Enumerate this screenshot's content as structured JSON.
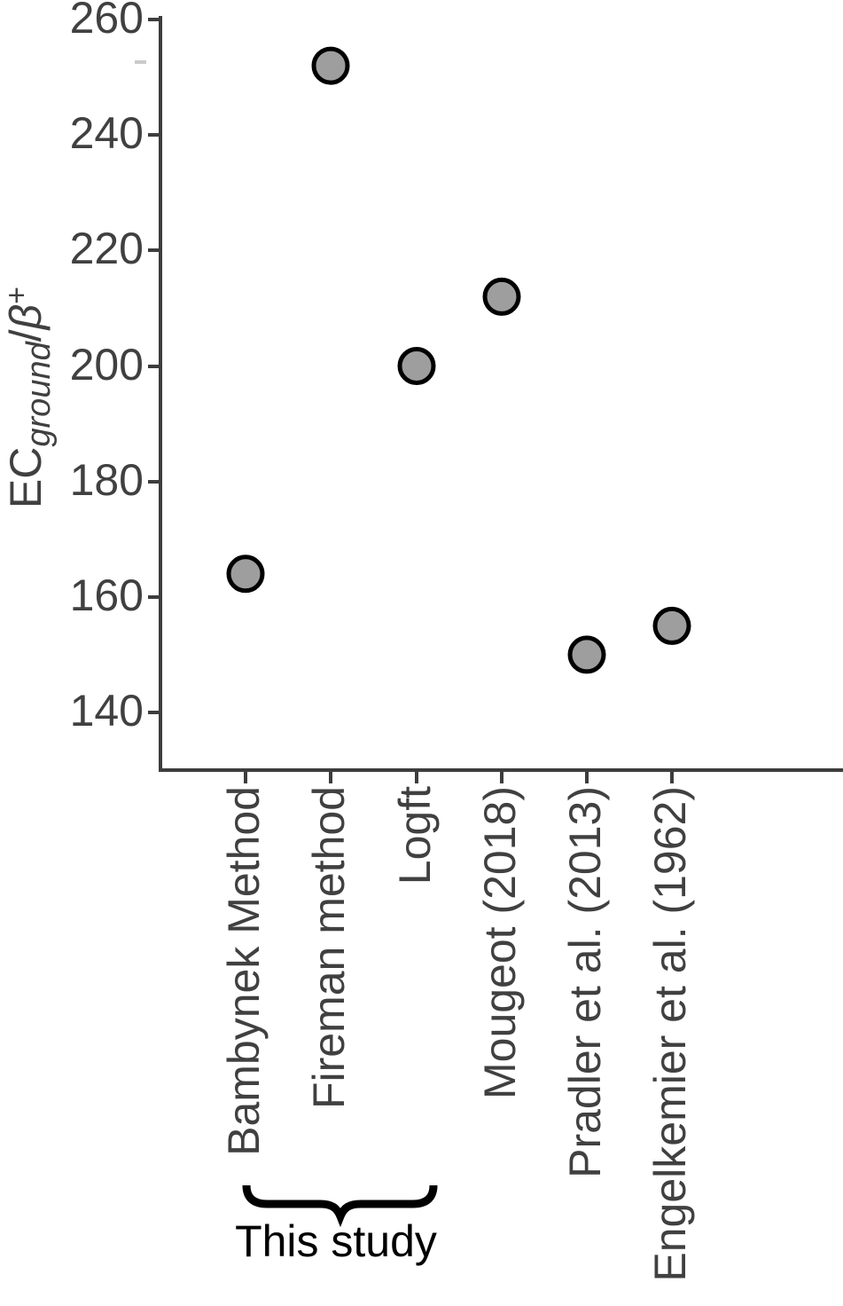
{
  "colors": {
    "background": "#ffffff",
    "axis": "#3d3d3d",
    "tick_label": "#404040",
    "marker_fill": "#9e9e9e",
    "marker_stroke": "#000000",
    "annotation": "#000000"
  },
  "chart_data": {
    "type": "scatter",
    "title": "",
    "xlabel": "",
    "ylabel": "EC_ground/β⁺",
    "ylabel_parts": {
      "prefix": "EC",
      "subscript": "ground",
      "slash": "/",
      "beta": "β",
      "superscript": "+"
    },
    "categories": [
      "Bambynek Method",
      "Fireman method",
      "Logft",
      "Mougeot (2018)",
      "Pradler et al. (2013)",
      "Engelkemier et al. (1962)"
    ],
    "values": [
      164,
      252,
      200,
      212,
      150,
      155
    ],
    "yticks": [
      260,
      240,
      220,
      200,
      180,
      160,
      140
    ],
    "ylim": [
      131,
      262
    ],
    "grid": false,
    "legend_position": "none",
    "marker_shape": "circle",
    "annotation": {
      "label": "This study",
      "covers": [
        "Bambynek Method",
        "Fireman method",
        "Logft"
      ]
    }
  }
}
